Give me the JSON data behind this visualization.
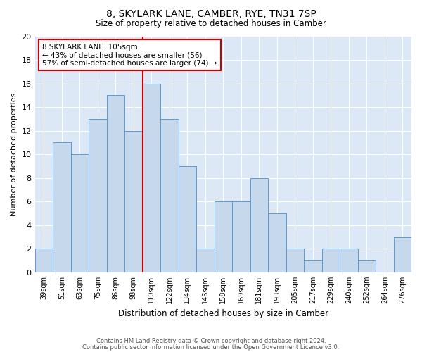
{
  "title": "8, SKYLARK LANE, CAMBER, RYE, TN31 7SP",
  "subtitle": "Size of property relative to detached houses in Camber",
  "xlabel": "Distribution of detached houses by size in Camber",
  "ylabel": "Number of detached properties",
  "categories": [
    "39sqm",
    "51sqm",
    "63sqm",
    "75sqm",
    "86sqm",
    "98sqm",
    "110sqm",
    "122sqm",
    "134sqm",
    "146sqm",
    "158sqm",
    "169sqm",
    "181sqm",
    "193sqm",
    "205sqm",
    "217sqm",
    "229sqm",
    "240sqm",
    "252sqm",
    "264sqm",
    "276sqm"
  ],
  "values": [
    2,
    11,
    10,
    13,
    15,
    12,
    16,
    13,
    9,
    2,
    6,
    6,
    8,
    5,
    2,
    1,
    2,
    2,
    1,
    0,
    3
  ],
  "bar_color": "#c6d9ec",
  "bar_edge_color": "#5b9bd5",
  "vline_color": "#cc0000",
  "ylim": [
    0,
    20
  ],
  "yticks": [
    0,
    2,
    4,
    6,
    8,
    10,
    12,
    14,
    16,
    18,
    20
  ],
  "annotation_text": "8 SKYLARK LANE: 105sqm\n← 43% of detached houses are smaller (56)\n57% of semi-detached houses are larger (74) →",
  "annotation_box_color": "#cc0000",
  "bg_color": "#dce8f5",
  "footer_line1": "Contains HM Land Registry data © Crown copyright and database right 2024.",
  "footer_line2": "Contains public sector information licensed under the Open Government Licence v3.0."
}
